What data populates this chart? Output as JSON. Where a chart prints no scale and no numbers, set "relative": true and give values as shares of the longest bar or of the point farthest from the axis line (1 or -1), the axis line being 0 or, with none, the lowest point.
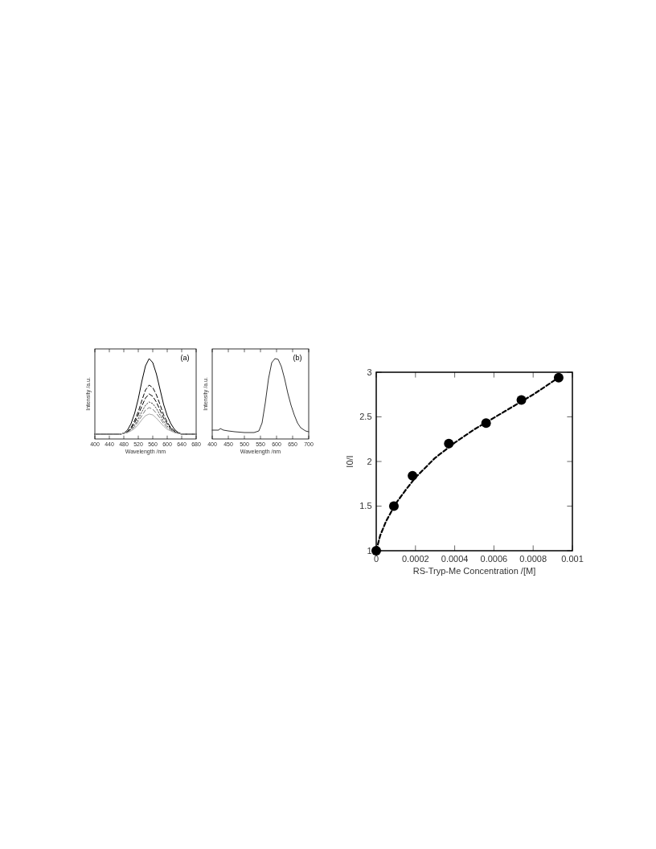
{
  "chart_data": [
    {
      "type": "line",
      "relative": true,
      "xlabel": "Wavelength /nm",
      "ylabel": "Intensity /a.u.",
      "annotations": [
        "(a)"
      ],
      "xlim": [
        400,
        680
      ],
      "xticks": [
        400,
        440,
        480,
        520,
        560,
        600,
        640,
        680
      ],
      "grid": false,
      "marker": "none",
      "x": [
        400,
        440,
        470,
        480,
        490,
        500,
        510,
        520,
        530,
        540,
        550,
        560,
        570,
        580,
        590,
        600,
        610,
        620,
        630,
        640,
        650,
        680
      ],
      "series": [
        {
          "color": "#000000",
          "line_style": "solid",
          "values": [
            0.06,
            0.06,
            0.06,
            0.07,
            0.11,
            0.19,
            0.32,
            0.5,
            0.72,
            0.91,
            1,
            0.95,
            0.81,
            0.62,
            0.43,
            0.29,
            0.19,
            0.12,
            0.08,
            0.06,
            0.06,
            0.06
          ]
        },
        {
          "color": "#000000",
          "line_style": "dashed",
          "values": [
            0.06,
            0.06,
            0.06,
            0.07,
            0.09,
            0.14,
            0.23,
            0.34,
            0.48,
            0.61,
            0.67,
            0.64,
            0.55,
            0.43,
            0.3,
            0.21,
            0.14,
            0.1,
            0.08,
            0.06,
            0.06,
            0.06
          ]
        },
        {
          "color": "#000000",
          "line_style": "dashed",
          "values": [
            0.06,
            0.06,
            0.06,
            0.07,
            0.09,
            0.13,
            0.2,
            0.3,
            0.41,
            0.51,
            0.56,
            0.53,
            0.46,
            0.36,
            0.26,
            0.19,
            0.13,
            0.09,
            0.07,
            0.06,
            0.06,
            0.06
          ]
        },
        {
          "color": "#444444",
          "line_style": "dotted",
          "values": [
            0.06,
            0.06,
            0.06,
            0.07,
            0.08,
            0.12,
            0.17,
            0.25,
            0.34,
            0.42,
            0.46,
            0.44,
            0.38,
            0.3,
            0.22,
            0.16,
            0.12,
            0.09,
            0.07,
            0.06,
            0.06,
            0.06
          ]
        },
        {
          "color": "#777777",
          "line_style": "dashed",
          "values": [
            0.06,
            0.06,
            0.06,
            0.07,
            0.08,
            0.11,
            0.15,
            0.22,
            0.29,
            0.36,
            0.39,
            0.37,
            0.32,
            0.26,
            0.19,
            0.14,
            0.11,
            0.08,
            0.07,
            0.06,
            0.06,
            0.06
          ]
        },
        {
          "color": "#aaaaaa",
          "line_style": "solid",
          "values": [
            0.06,
            0.06,
            0.06,
            0.07,
            0.08,
            0.1,
            0.13,
            0.18,
            0.24,
            0.29,
            0.31,
            0.3,
            0.26,
            0.21,
            0.16,
            0.12,
            0.1,
            0.08,
            0.07,
            0.06,
            0.06,
            0.06
          ]
        }
      ]
    },
    {
      "type": "line",
      "relative": true,
      "xlabel": "Wavelength /nm",
      "ylabel": "Intensity /a.u.",
      "annotations": [
        "(b)"
      ],
      "xlim": [
        400,
        700
      ],
      "xticks": [
        400,
        450,
        500,
        550,
        600,
        650,
        700
      ],
      "grid": false,
      "marker": "none",
      "x": [
        400,
        420,
        425,
        435,
        450,
        470,
        500,
        530,
        545,
        555,
        565,
        575,
        585,
        595,
        605,
        615,
        625,
        635,
        645,
        655,
        665,
        675,
        690,
        700
      ],
      "series": [
        {
          "color": "#333333",
          "line_style": "solid",
          "values": [
            0.11,
            0.11,
            0.13,
            0.11,
            0.1,
            0.09,
            0.08,
            0.08,
            0.1,
            0.2,
            0.45,
            0.75,
            0.95,
            1,
            0.99,
            0.9,
            0.75,
            0.57,
            0.42,
            0.3,
            0.2,
            0.14,
            0.1,
            0.09
          ]
        }
      ]
    },
    {
      "type": "scatter",
      "xlabel": "RS-Tryp-Me Concentration /[M]",
      "ylabel": "I0/I",
      "xlim": [
        0,
        0.001
      ],
      "xticks": [
        0,
        0.0002,
        0.0004,
        0.0006,
        0.0008,
        0.001
      ],
      "ylim": [
        1,
        3
      ],
      "yticks": [
        1,
        1.5,
        2,
        2.5,
        3
      ],
      "grid": false,
      "marker": "circle",
      "series": [
        {
          "type": "scatter",
          "color": "#000000",
          "x": [
            0,
            9e-05,
            0.000185,
            0.00037,
            0.00056,
            0.00074,
            0.00093
          ],
          "values": [
            1,
            1.5,
            1.84,
            2.2,
            2.43,
            2.69,
            2.94
          ]
        },
        {
          "type": "line",
          "color": "#000000",
          "line_style": "dashed",
          "marker": "none",
          "x": [
            0,
            2e-05,
            5e-05,
            0.0001,
            0.00015,
            0.0002,
            0.0003,
            0.0004,
            0.0005,
            0.0006,
            0.0007,
            0.0008,
            0.00093
          ],
          "values": [
            1,
            1.17,
            1.33,
            1.53,
            1.68,
            1.82,
            2.04,
            2.21,
            2.36,
            2.49,
            2.62,
            2.75,
            2.94
          ]
        }
      ]
    }
  ]
}
